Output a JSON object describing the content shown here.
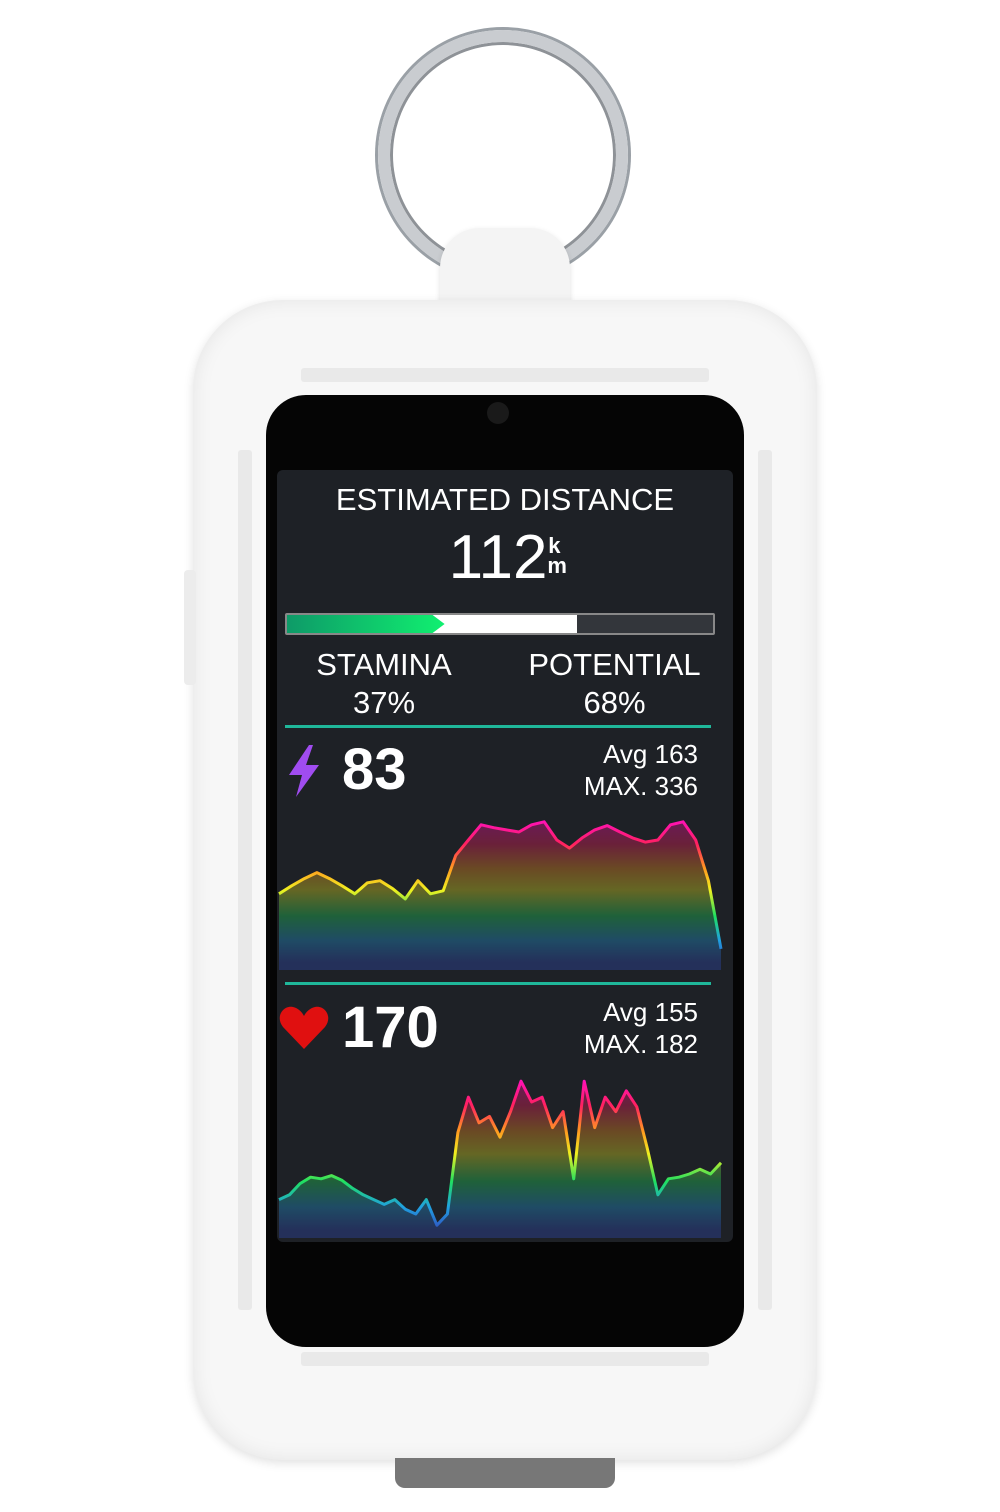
{
  "screen": {
    "title": "ESTIMATED DISTANCE",
    "distance_value": "112",
    "distance_unit_top": "k",
    "distance_unit_bottom": "m",
    "stamina_label": "STAMINA",
    "stamina_value": "37%",
    "potential_label": "POTENTIAL",
    "potential_value": "68%",
    "stamina_fraction": 0.37,
    "potential_fraction": 0.68,
    "power": {
      "icon": "lightning-bolt-icon",
      "value": "83",
      "avg": "Avg 163",
      "max": "MAX. 336"
    },
    "heart_rate": {
      "icon": "heart-icon",
      "value": "170",
      "avg": "Avg 155",
      "max": "MAX. 182"
    }
  },
  "colors": {
    "accent_divider": "#1fb79a",
    "stamina": "#10f070",
    "bolt": "#a04cf0",
    "heart": "#e01010",
    "screen_bg": "#1e2126"
  },
  "chart_data": [
    {
      "type": "area",
      "metric": "power",
      "ylim": [
        0,
        340
      ],
      "grid": false,
      "values": [
        161,
        180,
        197,
        211,
        197,
        180,
        161,
        187,
        192,
        173,
        149,
        192,
        161,
        168,
        252,
        288,
        324,
        317,
        312,
        307,
        324,
        331,
        288,
        269,
        293,
        312,
        322,
        307,
        293,
        283,
        288,
        324,
        331,
        288,
        192,
        31
      ]
    },
    {
      "type": "area",
      "metric": "heart_rate",
      "ylim": [
        90,
        185
      ],
      "grid": false,
      "values": [
        109,
        112,
        119,
        123,
        122,
        124,
        121,
        116,
        112,
        109,
        106,
        109,
        103,
        100,
        109,
        93,
        100,
        151,
        173,
        157,
        161,
        148,
        164,
        183,
        170,
        173,
        154,
        164,
        122,
        183,
        154,
        173,
        164,
        177,
        167,
        141,
        112,
        122,
        123,
        125,
        128,
        125,
        132
      ]
    }
  ]
}
